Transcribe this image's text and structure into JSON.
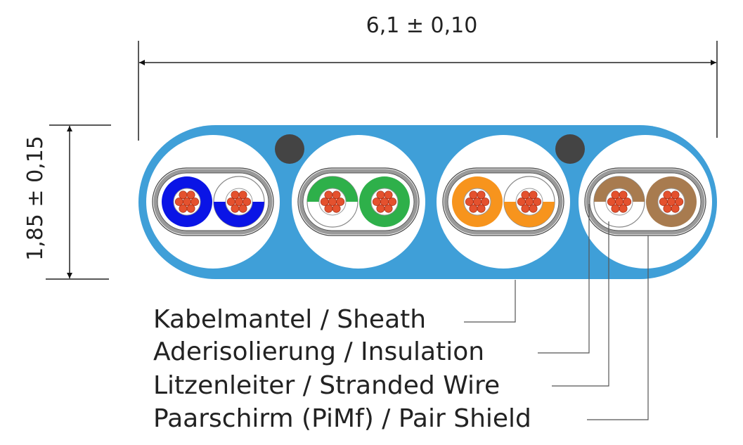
{
  "dimensions": {
    "width_label": "6,1 ± 0,10",
    "height_label": "1,85 ± 0,15"
  },
  "labels": [
    {
      "text": "Kabelmantel / Sheath"
    },
    {
      "text": "Aderisolierung / Insulation"
    },
    {
      "text": "Litzenleiter / Stranded Wire"
    },
    {
      "text": "Paarschirm (PiMf) / Pair Shield"
    }
  ],
  "colors": {
    "sheath": "#3f9fd8",
    "shield": "#999999",
    "drain_wire": "#444444",
    "conductor": "#e4512e",
    "pairs": [
      "#0a14e6",
      "#2eb04a",
      "#f7941d",
      "#a87b4f"
    ]
  },
  "pairs": [
    {
      "color_name": "blue",
      "left": "solid",
      "right": "white-bottom-colored"
    },
    {
      "color_name": "green",
      "left": "white-top-colored",
      "right": "solid"
    },
    {
      "color_name": "orange",
      "left": "solid",
      "right": "white-bottom-colored"
    },
    {
      "color_name": "brown",
      "left": "white-top-colored",
      "right": "solid"
    }
  ]
}
